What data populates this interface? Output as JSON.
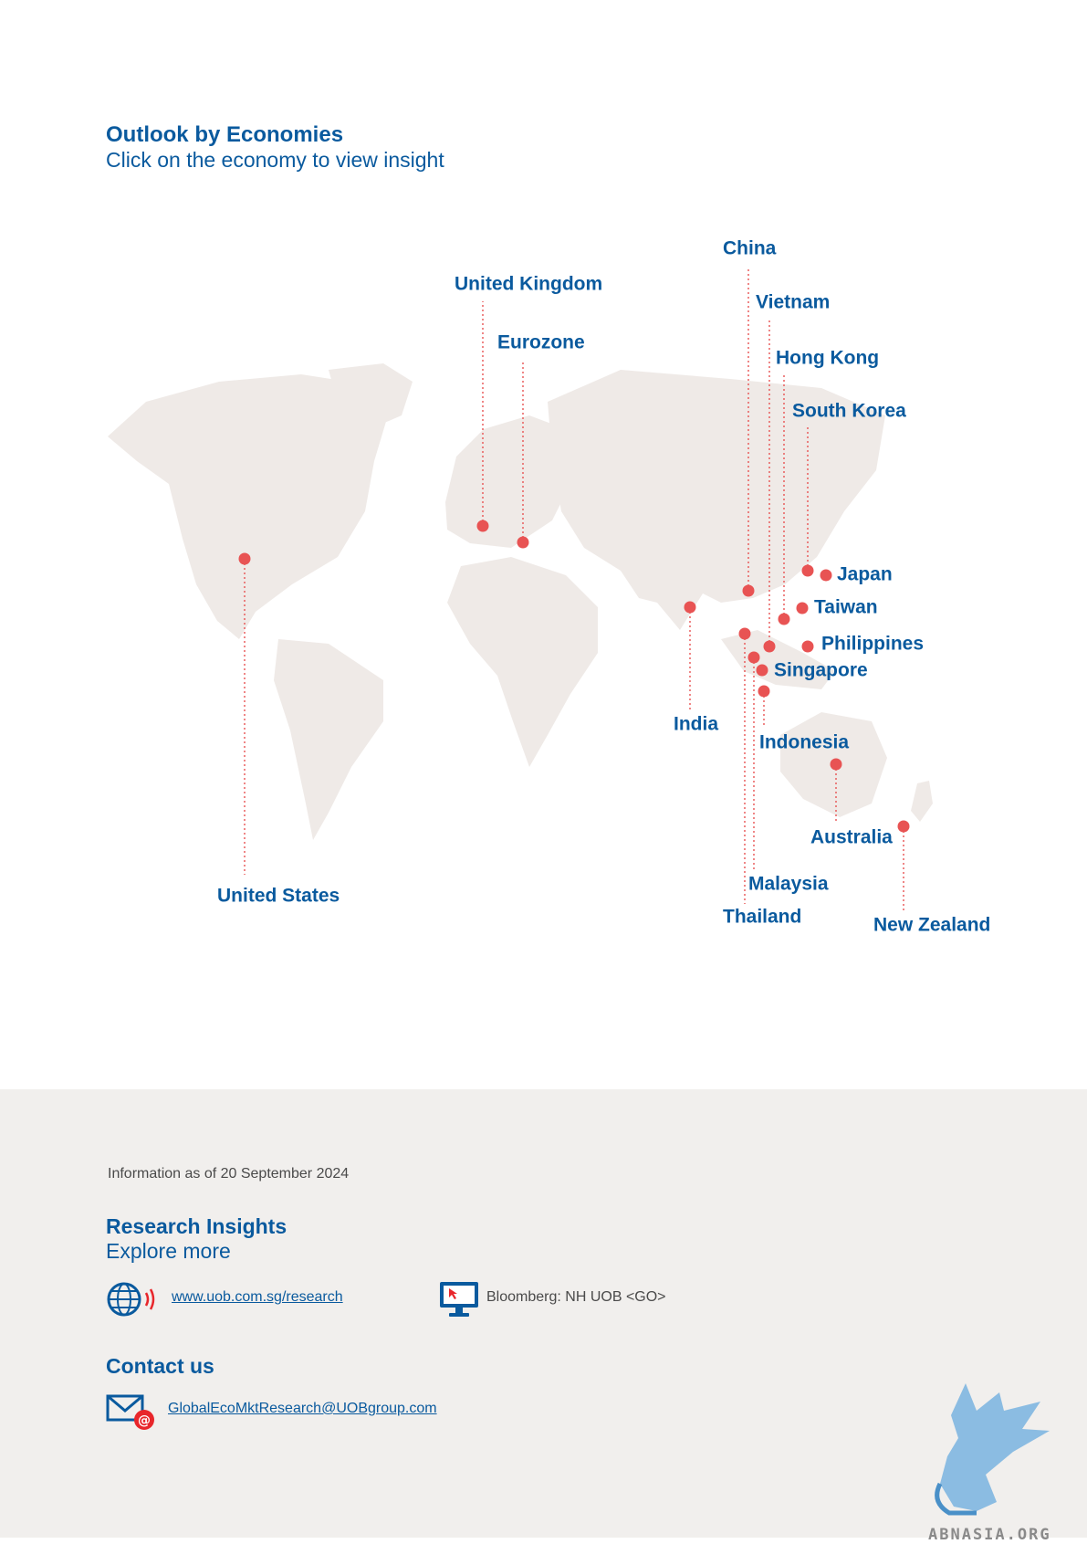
{
  "header": {
    "title": "Outlook by Economies",
    "subtitle": "Click on the economy to view insight"
  },
  "map": {
    "marker_color": "#e85353",
    "label_color": "#0a5a9e",
    "economies": [
      {
        "id": "united-states",
        "label": "United States"
      },
      {
        "id": "united-kingdom",
        "label": "United Kingdom"
      },
      {
        "id": "eurozone",
        "label": "Eurozone"
      },
      {
        "id": "china",
        "label": "China"
      },
      {
        "id": "vietnam",
        "label": "Vietnam"
      },
      {
        "id": "hong-kong",
        "label": "Hong Kong"
      },
      {
        "id": "south-korea",
        "label": "South Korea"
      },
      {
        "id": "japan",
        "label": "Japan"
      },
      {
        "id": "taiwan",
        "label": "Taiwan"
      },
      {
        "id": "philippines",
        "label": "Philippines"
      },
      {
        "id": "singapore",
        "label": "Singapore"
      },
      {
        "id": "india",
        "label": "India"
      },
      {
        "id": "indonesia",
        "label": "Indonesia"
      },
      {
        "id": "australia",
        "label": "Australia"
      },
      {
        "id": "malaysia",
        "label": "Malaysia"
      },
      {
        "id": "thailand",
        "label": "Thailand"
      },
      {
        "id": "new-zealand",
        "label": "New Zealand"
      }
    ]
  },
  "footer": {
    "info": "Information as of 20 September 2024",
    "research_title": "Research Insights",
    "research_sub": "Explore more",
    "website": "www.uob.com.sg/research",
    "bloomberg": "Bloomberg: NH UOB <GO>",
    "contact_title": "Contact us",
    "email": "GlobalEcoMktResearch@UOBgroup.com",
    "watermark": "ABNASIA.ORG"
  }
}
